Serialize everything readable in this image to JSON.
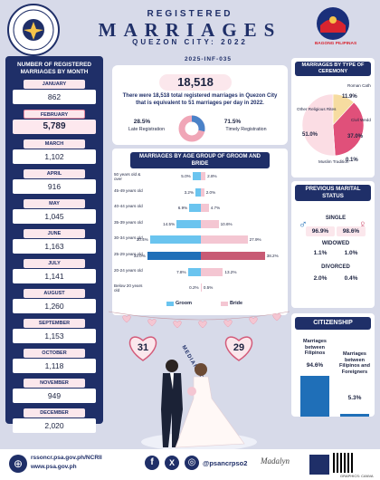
{
  "header": {
    "line1": "REGISTERED",
    "line2": "MARRIAGES",
    "line3": "QUEZON CITY: 2022",
    "code": "2025-INF-035",
    "psa_ring_text": "PHILIPPINE STATISTICS AUTHORITY",
    "bp_text": "BAGONG PILIPINAS"
  },
  "months": {
    "title": "NUMBER OF REGISTERED MARRIAGES BY MONTH",
    "items": [
      {
        "label": "JANUARY",
        "value": "862"
      },
      {
        "label": "FEBRUARY",
        "value": "5,789"
      },
      {
        "label": "MARCH",
        "value": "1,102"
      },
      {
        "label": "APRIL",
        "value": "916"
      },
      {
        "label": "MAY",
        "value": "1,045"
      },
      {
        "label": "JUNE",
        "value": "1,163"
      },
      {
        "label": "JULY",
        "value": "1,141"
      },
      {
        "label": "AUGUST",
        "value": "1,260"
      },
      {
        "label": "SEPTEMBER",
        "value": "1,153"
      },
      {
        "label": "OCTOBER",
        "value": "1,118"
      },
      {
        "label": "NOVEMBER",
        "value": "949"
      },
      {
        "label": "DECEMBER",
        "value": "2,020"
      }
    ]
  },
  "summary": {
    "total": "18,518",
    "text": "There were 18,518 total registered marriages in Quezon City that is equivalent to 51 marriages per day in 2022.",
    "late_pct": "28.5%",
    "late_label": "Late Registration",
    "timely_pct": "71.5%",
    "timely_label": "Timely Registration",
    "late_value": 28.5,
    "timely_value": 71.5,
    "late_color": "#4a82c8",
    "timely_color": "#f0a6b7"
  },
  "age": {
    "title": "MARRIAGES BY AGE GROUP OF GROOM AND BRIDE",
    "groom_label": "Groom",
    "bride_label": "Bride",
    "groom_color": "#6ac4ef",
    "bride_color": "#f4c6d2",
    "rows": [
      {
        "label": "50 years old & over",
        "groom": "5.0%",
        "bride": "2.8%",
        "g": 5.0,
        "b": 2.8
      },
      {
        "label": "45-49 years old",
        "groom": "3.2%",
        "bride": "2.0%",
        "g": 3.2,
        "b": 2.0
      },
      {
        "label": "40-44 years old",
        "groom": "6.9%",
        "bride": "4.7%",
        "g": 6.9,
        "b": 4.7
      },
      {
        "label": "35-39 years old",
        "groom": "14.5%",
        "bride": "10.6%",
        "g": 14.5,
        "b": 10.6
      },
      {
        "label": "30-34 years old",
        "groom": "30.4%",
        "bride": "27.9%",
        "g": 30.4,
        "b": 27.9
      },
      {
        "label": "25-29 years old",
        "groom": "32.0%",
        "bride": "38.2%",
        "g": 32.0,
        "b": 38.2
      },
      {
        "label": "20-24 years old",
        "groom": "7.8%",
        "bride": "13.2%",
        "g": 7.8,
        "b": 13.2
      },
      {
        "label": "Below 20 years old",
        "groom": "0.2%",
        "bride": "0.5%",
        "g": 0.2,
        "b": 0.5
      }
    ]
  },
  "median": {
    "groom": "31",
    "bride": "29",
    "label": "MEDIAN AGE"
  },
  "ceremony": {
    "title": "MARRIAGES BY TYPE OF CEREMONY",
    "slices": [
      {
        "label": "Roman Catholic",
        "pct": "11.9%",
        "value": 11.9,
        "color": "#f6dca0"
      },
      {
        "label": "Civil Wedding",
        "pct": "37.0%",
        "value": 37.0,
        "color": "#e0507a"
      },
      {
        "label": "Muslim Tradition",
        "pct": "0.1%",
        "value": 0.1,
        "color": "#f2a6b6"
      },
      {
        "label": "Other Religious Rites",
        "pct": "51.0%",
        "value": 51.0,
        "color": "#fbdde4"
      }
    ]
  },
  "marital": {
    "title": "PREVIOUS MARITAL STATUS",
    "single": "SINGLE",
    "single_g": "96.9%",
    "single_b": "98.6%",
    "widowed": "WIDOWED",
    "wid_g": "1.1%",
    "wid_b": "1.0%",
    "divorced": "DIVORCED",
    "div_g": "2.0%",
    "div_b": "0.4%"
  },
  "citizenship": {
    "title": "CITIZENSHIP",
    "a_label": "Marriages between Filipinos",
    "a_pct": "94.6%",
    "a_value": 94.6,
    "b_label": "Marriages between Filipinos and Foreigners",
    "b_pct": "5.3%",
    "b_value": 5.3
  },
  "footer": {
    "web1": "rssoncr.psa.gov.ph/NCRII",
    "web2": "www.psa.gov.ph",
    "social": "@psancrpso2",
    "sign": "Madalyn",
    "credit": "GRAPHICS: CANVA"
  }
}
